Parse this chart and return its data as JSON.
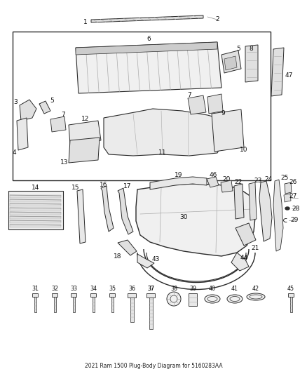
{
  "title": "2021 Ram 1500 Plug-Body Diagram for 5160283AA",
  "bg_color": "#ffffff",
  "fig_width": 4.38,
  "fig_height": 5.33,
  "dpi": 100
}
